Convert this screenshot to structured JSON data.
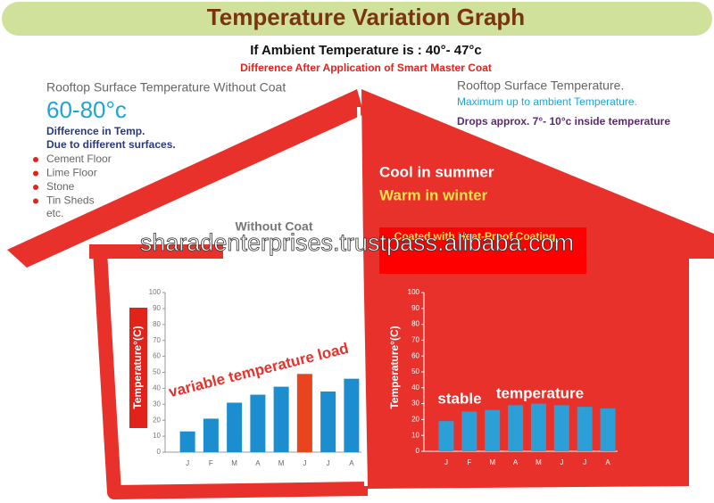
{
  "header": {
    "title": "Temperature Variation Graph",
    "subtitle": "If Ambient Temperature is : 40°- 47°c",
    "note": "Difference After Application of Smart Master Coat"
  },
  "left_info": {
    "heading": "Rooftop Surface Temperature Without Coat",
    "range": "60-80°c",
    "lines": [
      "Difference in Temp.",
      "Due to different surfaces."
    ],
    "surfaces": [
      "Cement Floor",
      "Lime Floor",
      "Stone",
      "Tin Sheds"
    ],
    "etc": "etc."
  },
  "right_info": {
    "heading": "Rooftop Surface Temperature.",
    "line1": "Maximum up to ambient Temperature.",
    "line2": "Drops approx. 7°- 10°c inside temperature",
    "cool": "Cool in summer",
    "warm": "Warm in winter"
  },
  "watermark": "sharadenterprises.trustpass.alibaba.com",
  "chart_data": [
    {
      "type": "bar",
      "title": "Without Coat",
      "y_label": "Temperature°(C)",
      "categories": [
        "J",
        "F",
        "M",
        "A",
        "M",
        "J",
        "J",
        "A"
      ],
      "values": [
        13,
        21,
        31,
        36,
        41,
        49,
        38,
        46
      ],
      "colors": [
        "#1c8ed0",
        "#1c8ed0",
        "#1c8ed0",
        "#1c8ed0",
        "#1c8ed0",
        "#e8441e",
        "#1c8ed0",
        "#1c8ed0"
      ],
      "ylim": [
        0,
        100
      ],
      "yticks": [
        0,
        10,
        20,
        30,
        40,
        50,
        60,
        70,
        80,
        90,
        100
      ],
      "annotations": [
        "variable temperature load"
      ]
    },
    {
      "type": "bar",
      "title": "Coated with Heat-Proof Coating",
      "y_label": "Temperature°(C)",
      "categories": [
        "J",
        "F",
        "M",
        "A",
        "M",
        "J",
        "J",
        "A"
      ],
      "values": [
        19,
        25,
        26,
        29,
        30,
        29,
        28,
        27
      ],
      "color": "#2c9fd6",
      "ylim": [
        0,
        100
      ],
      "yticks": [
        0,
        10,
        20,
        30,
        40,
        50,
        60,
        70,
        80,
        90,
        100
      ],
      "annotations": [
        "stable",
        "temperature"
      ]
    }
  ]
}
